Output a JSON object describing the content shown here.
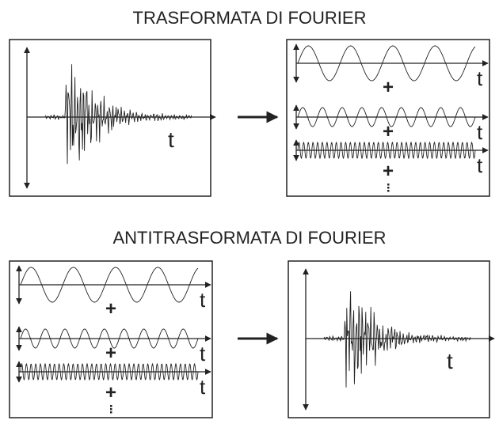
{
  "sections": [
    {
      "title": "TRASFORMATA DI FOURIER",
      "signal_axis_label": "t",
      "component_axis_labels": [
        "t",
        "t",
        "t"
      ],
      "operators": [
        "+",
        "+",
        "+"
      ]
    },
    {
      "title": "ANTITRASFORMATA DI FOURIER",
      "signal_axis_label": "t",
      "component_axis_labels": [
        "t",
        "t",
        "t"
      ],
      "operators": [
        "+",
        "+",
        "+"
      ]
    }
  ]
}
